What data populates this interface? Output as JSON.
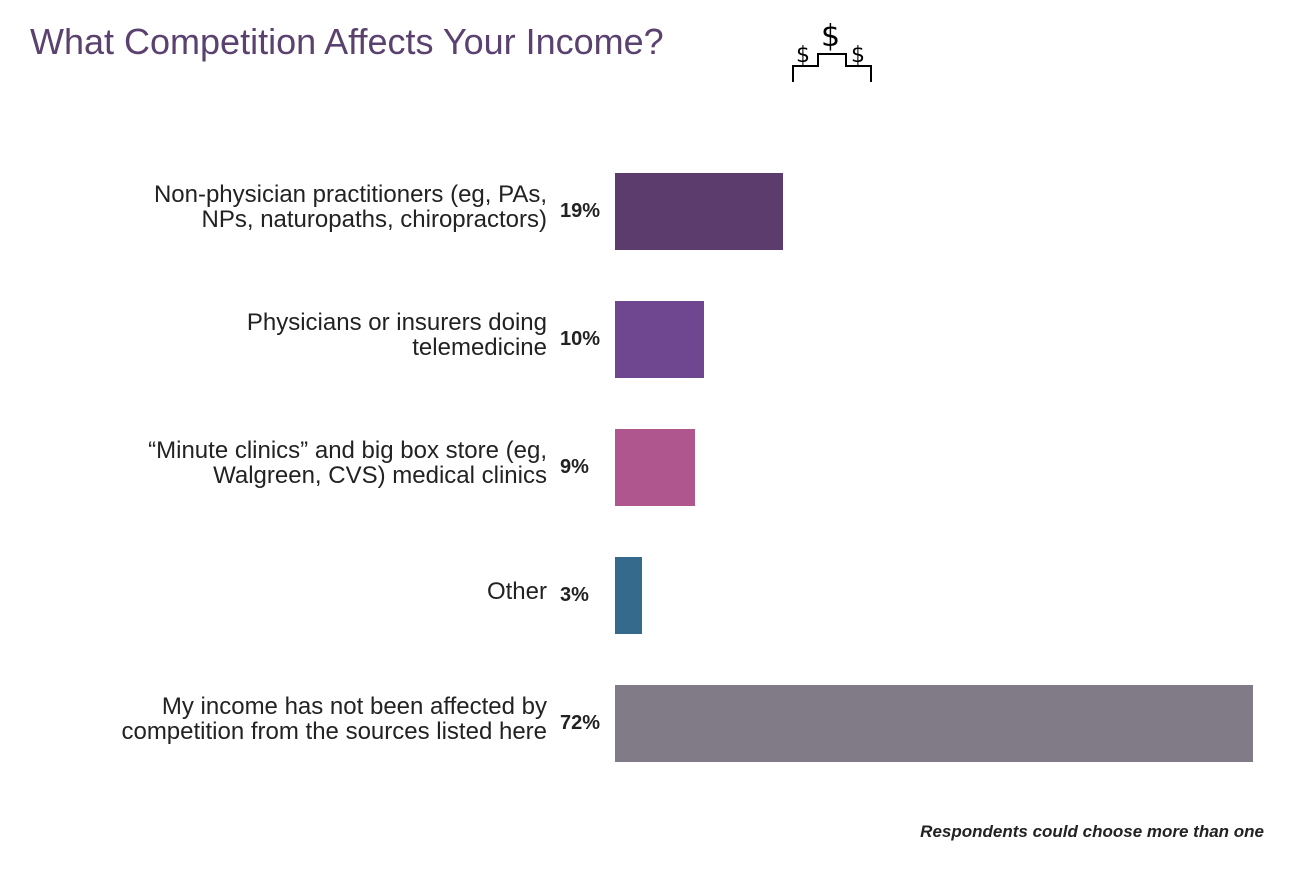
{
  "title": "What Competition Affects Your Income?",
  "icon": "dollar-podium-icon",
  "footnote": "Respondents could choose more than one",
  "chart_data": {
    "type": "bar",
    "orientation": "horizontal",
    "categories": [
      "Non-physician practitioners (eg, PAs,\nNPs, naturopaths, chiropractors)",
      "Physicians or insurers doing\ntelemedicine",
      "“Minute clinics” and big box store (eg,\nWalgreen, CVS) medical clinics",
      "Other",
      "My income has not been affected by\ncompetition from the sources listed here"
    ],
    "values": [
      19,
      10,
      9,
      3,
      72
    ],
    "data_labels": [
      "19%",
      "10%",
      "9%",
      "3%",
      "72%"
    ],
    "colors": [
      "#5b3c6c",
      "#6f4791",
      "#b0568f",
      "#356a8c",
      "#807b87"
    ],
    "xlim": [
      0,
      72
    ],
    "grid": false
  }
}
